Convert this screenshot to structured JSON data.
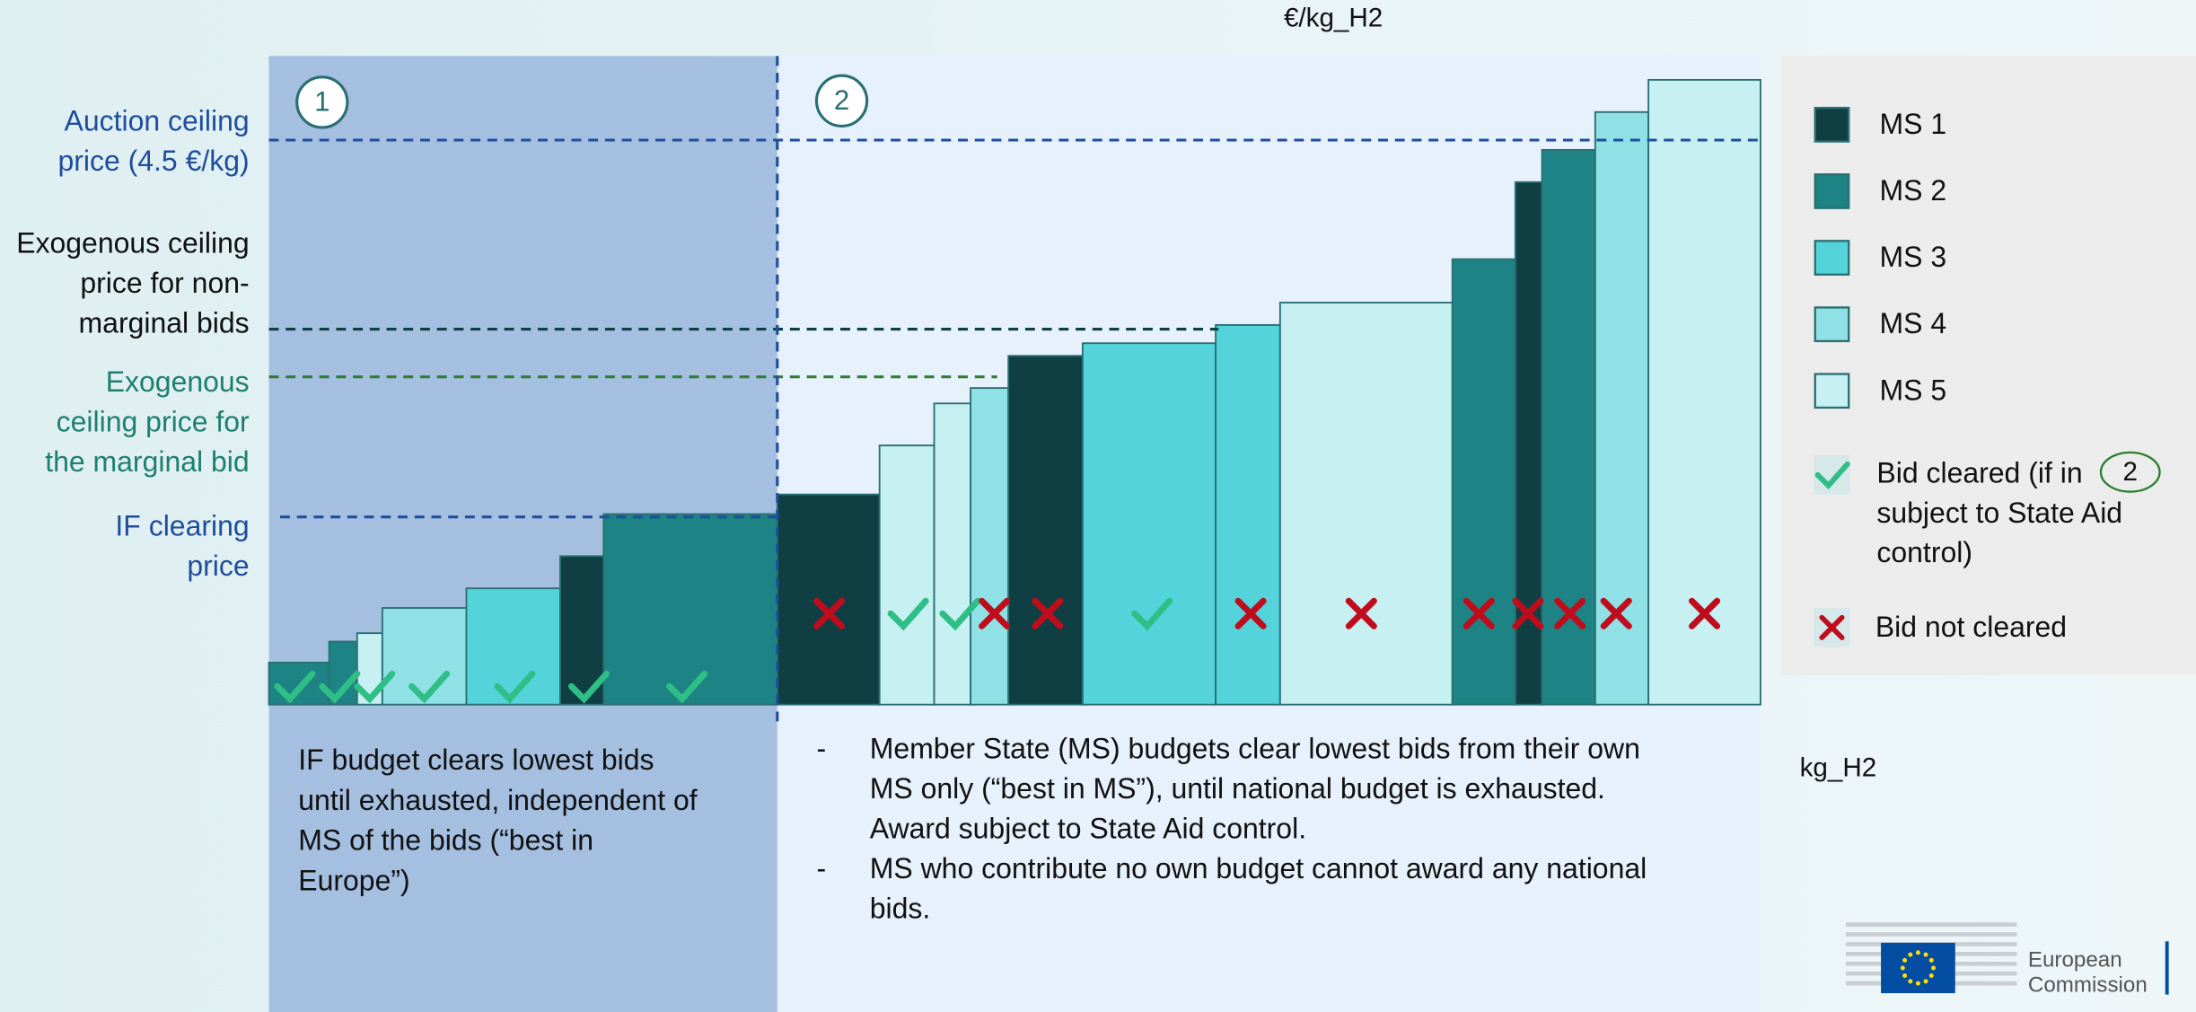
{
  "axis": {
    "y_label": "€/kg_H2",
    "x_label": "kg_H2"
  },
  "zones": [
    "1",
    "2"
  ],
  "left_labels": [
    {
      "lines": [
        "Auction ceiling",
        "price (4.5 €/kg)"
      ]
    },
    {
      "lines": [
        "Exogenous ceiling",
        "price for non-",
        "marginal bids"
      ]
    },
    {
      "lines": [
        "Exogenous",
        "ceiling price for",
        "the marginal bid"
      ]
    },
    {
      "lines": [
        "IF clearing",
        "price"
      ]
    }
  ],
  "legend": {
    "items": [
      "MS 1",
      "MS 2",
      "MS 3",
      "MS 4",
      "MS 5"
    ],
    "cleared": {
      "lines": [
        "Bid cleared (if in",
        "subject to State Aid",
        "control)"
      ],
      "badge": "2"
    },
    "not_cleared": "Bid not cleared"
  },
  "notes": {
    "left": [
      "IF budget clears lowest bids",
      "until exhausted, independent of",
      "MS of the bids (“best in",
      "Europe”)"
    ],
    "right": [
      {
        "bullet": "-",
        "lines": [
          "Member State (MS) budgets clear lowest bids from their own",
          "MS only (“best in MS”), until national budget is exhausted.",
          "Award subject to State Aid control."
        ]
      },
      {
        "bullet": "-",
        "lines": [
          "MS who contribute no own budget cannot award any national",
          "bids."
        ]
      }
    ]
  },
  "logo": [
    "European",
    "Commission"
  ]
}
